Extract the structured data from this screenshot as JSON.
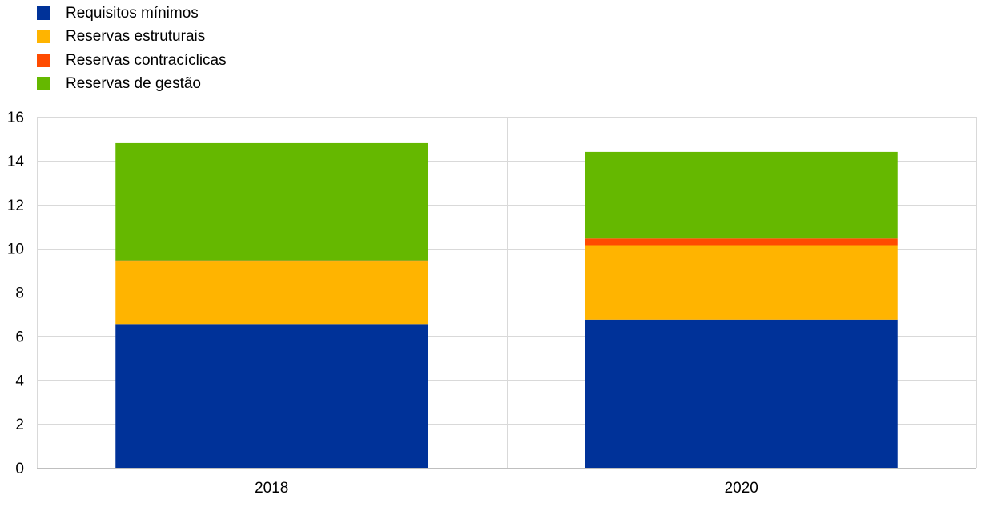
{
  "chart_data": {
    "type": "bar",
    "stacked": true,
    "categories": [
      "2018",
      "2020"
    ],
    "series": [
      {
        "name": "Requisitos mínimos",
        "color": "#003299",
        "values": [
          6.55,
          6.75
        ]
      },
      {
        "name": "Reservas estruturais",
        "color": "#FFB400",
        "values": [
          2.85,
          3.4
        ]
      },
      {
        "name": "Reservas contracíclicas",
        "color": "#FF4B00",
        "values": [
          0.05,
          0.3
        ]
      },
      {
        "name": "Reservas de gestão",
        "color": "#65B800",
        "values": [
          5.35,
          3.95
        ]
      }
    ],
    "title": "",
    "xlabel": "",
    "ylabel": "",
    "ylim": [
      0,
      16
    ],
    "yticks": [
      0,
      2,
      4,
      6,
      8,
      10,
      12,
      14,
      16
    ],
    "grid": true,
    "legend_position": "top-left"
  }
}
